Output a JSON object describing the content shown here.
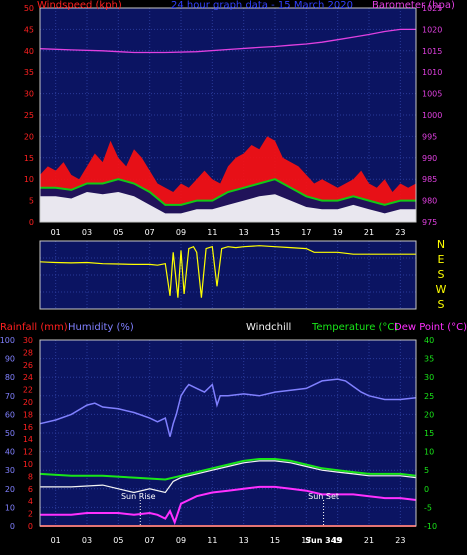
{
  "chart_data": [
    {
      "type": "line",
      "title": "24 hour graph data - 15 March 2020",
      "legend": {
        "left": "Windspeed (kph)",
        "right": "Barometer (hpa)"
      },
      "x_ticks": [
        "01",
        "03",
        "05",
        "07",
        "09",
        "11",
        "13",
        "15",
        "17",
        "19",
        "21",
        "23"
      ],
      "x_range_hours": [
        0,
        24
      ],
      "y_left": {
        "label": "Windspeed (kph)",
        "range": [
          0,
          50
        ],
        "ticks": [
          0,
          5,
          10,
          15,
          20,
          25,
          30,
          35,
          40,
          45,
          50
        ]
      },
      "y_right": {
        "label": "Barometer (hpa)",
        "range": [
          975,
          1025
        ],
        "ticks": [
          975,
          980,
          985,
          990,
          995,
          1000,
          1005,
          1010,
          1015,
          1020,
          1025
        ]
      },
      "grid": true,
      "colors": {
        "gust": "#ff1010",
        "average": "#14c814",
        "wind_fill": "#ffffff",
        "barometer": "#e040e0",
        "axis_left": "#ff2020",
        "axis_right": "#e040e0",
        "plot_bg": "#0b1462"
      },
      "series": [
        {
          "name": "Barometer (hpa)",
          "axis": "right",
          "x": [
            0,
            2,
            4,
            6,
            8,
            10,
            12,
            14,
            15,
            16,
            17,
            18,
            19,
            20,
            21,
            22,
            23,
            24
          ],
          "y": [
            1015.5,
            1015.2,
            1015.0,
            1014.6,
            1014.6,
            1014.8,
            1015.3,
            1015.8,
            1016.0,
            1016.3,
            1016.6,
            1017.0,
            1017.6,
            1018.2,
            1018.8,
            1019.5,
            1020.0,
            1020.0
          ]
        },
        {
          "role": "gust",
          "axis": "left",
          "x": [
            0,
            0.5,
            1,
            1.5,
            2,
            2.5,
            3,
            3.5,
            4,
            4.5,
            5,
            5.5,
            6,
            6.5,
            7,
            7.5,
            8,
            8.5,
            9,
            9.5,
            10,
            10.5,
            11,
            11.5,
            12,
            12.5,
            13,
            13.5,
            14,
            14.5,
            15,
            15.5,
            16,
            16.5,
            17,
            17.5,
            18,
            18.5,
            19,
            19.5,
            20,
            20.5,
            21,
            21.5,
            22,
            22.5,
            23,
            23.5,
            24
          ],
          "y": [
            11,
            13,
            12,
            14,
            11,
            10,
            13,
            16,
            14,
            19,
            15,
            13,
            17,
            15,
            12,
            9,
            8,
            7,
            9,
            8,
            10,
            12,
            10,
            9,
            13,
            15,
            16,
            18,
            17,
            20,
            19,
            15,
            14,
            13,
            11,
            9,
            10,
            9,
            8,
            9,
            10,
            12,
            9,
            8,
            10,
            7,
            9,
            8,
            9
          ]
        },
        {
          "role": "average",
          "axis": "left",
          "x": [
            0,
            1,
            2,
            3,
            4,
            5,
            6,
            7,
            8,
            9,
            10,
            11,
            12,
            13,
            14,
            15,
            16,
            17,
            18,
            19,
            20,
            21,
            22,
            23,
            24
          ],
          "y": [
            8,
            8,
            7.5,
            9,
            9,
            10,
            9,
            7,
            4,
            4,
            5,
            5,
            7,
            8,
            9,
            10,
            8,
            6,
            5,
            5,
            6,
            5,
            4,
            5,
            5
          ]
        },
        {
          "role": "average-fill",
          "axis": "left",
          "x": [
            0,
            1,
            2,
            3,
            4,
            5,
            6,
            7,
            8,
            9,
            10,
            11,
            12,
            13,
            14,
            15,
            16,
            17,
            18,
            19,
            20,
            21,
            22,
            23,
            24
          ],
          "y": [
            6,
            6,
            5.5,
            7,
            6.5,
            7,
            6,
            4,
            2,
            2,
            3,
            3,
            4,
            5,
            6,
            6.5,
            5,
            3.5,
            3,
            3,
            4,
            3,
            2,
            3,
            3
          ]
        }
      ]
    },
    {
      "type": "line",
      "y_labels": [
        "N",
        "E",
        "S",
        "W",
        "S"
      ],
      "y_range_degrees": [
        0,
        360
      ],
      "series": [
        {
          "role": "wind-direction",
          "color": "#ffff00",
          "x": [
            0,
            0.5,
            1,
            2,
            3,
            4,
            5,
            6,
            7,
            7.5,
            8,
            8.3,
            8.5,
            8.8,
            9,
            9.2,
            9.5,
            9.8,
            10,
            10.3,
            10.6,
            11,
            11.3,
            11.6,
            12,
            12.5,
            13,
            14,
            15,
            16,
            17,
            17.5,
            18,
            19,
            20,
            21,
            22,
            23,
            24
          ],
          "y": [
            250,
            248,
            246,
            244,
            246,
            240,
            238,
            236,
            236,
            232,
            240,
            70,
            300,
            60,
            310,
            80,
            320,
            330,
            300,
            60,
            320,
            330,
            120,
            320,
            330,
            325,
            330,
            335,
            330,
            325,
            320,
            300,
            300,
            300,
            290,
            290,
            290,
            290,
            290
          ]
        }
      ]
    },
    {
      "type": "line",
      "legend": {
        "rainfall": "Rainfall (mm)",
        "humidity": "Humidity (%)",
        "windchill": "Windchill",
        "temperature": "Temperature (°C)",
        "dewpoint": "Dew Point (°C)"
      },
      "annotations": {
        "sunrise": "Sun Rise",
        "sunset": "Sun Set",
        "sunset_time": "Sun 349"
      },
      "x_ticks": [
        "01",
        "03",
        "05",
        "07",
        "09",
        "11",
        "13",
        "15",
        "17",
        "19",
        "21",
        "23"
      ],
      "y_humidity": {
        "range": [
          0,
          100
        ],
        "ticks": [
          0,
          10,
          20,
          30,
          40,
          50,
          60,
          70,
          80,
          90,
          100
        ]
      },
      "y_rain": {
        "range": [
          0,
          30
        ],
        "ticks": [
          0,
          2,
          4,
          6,
          8,
          10,
          12,
          14,
          16,
          18,
          20,
          22,
          24,
          26,
          28,
          30
        ]
      },
      "y_temp": {
        "range": [
          -10,
          40
        ],
        "ticks": [
          -10,
          -5,
          0,
          5,
          10,
          15,
          20,
          25,
          30,
          35,
          40
        ]
      },
      "grid": true,
      "colors": {
        "humidity": "#8080ff",
        "temperature": "#19e619",
        "windchill": "#f5f5f5",
        "dewpoint": "#ff30ff",
        "rainfall": "#ff2020",
        "axis_temp": "#19e619"
      },
      "sunrise_hour": 6.4,
      "sunset_hour": 18.1,
      "series": [
        {
          "role": "humidity",
          "axis": "humidity",
          "x": [
            0,
            1,
            2,
            3,
            3.5,
            4,
            5,
            6,
            7,
            7.5,
            8,
            8.3,
            8.5,
            8.7,
            9,
            9.3,
            9.5,
            10,
            10.5,
            11,
            11.3,
            11.5,
            12,
            13,
            14,
            15,
            16,
            17,
            18,
            19,
            19.5,
            20,
            20.5,
            21,
            22,
            23,
            24
          ],
          "y": [
            55,
            57,
            60,
            65,
            66,
            64,
            63,
            61,
            58,
            56,
            58,
            48,
            55,
            60,
            70,
            74,
            76,
            74,
            72,
            76,
            65,
            70,
            70,
            71,
            70,
            72,
            73,
            74,
            78,
            79,
            78,
            75,
            72,
            70,
            68,
            68,
            69
          ]
        },
        {
          "role": "temperature",
          "axis": "temp",
          "x": [
            0,
            2,
            4,
            6,
            8,
            9,
            10,
            11,
            12,
            13,
            14,
            15,
            16,
            17,
            18,
            19,
            20,
            21,
            22,
            23,
            24
          ],
          "y": [
            4,
            3.5,
            3.5,
            3,
            2.5,
            3.5,
            4.5,
            5.5,
            6.5,
            7.5,
            8,
            8,
            7.5,
            6.5,
            5.5,
            5,
            4.5,
            4,
            4,
            4,
            3.5
          ]
        },
        {
          "role": "windchill",
          "axis": "temp",
          "x": [
            0,
            2,
            4,
            6,
            7,
            8,
            8.5,
            9,
            10,
            11,
            12,
            13,
            14,
            15,
            16,
            17,
            18,
            19,
            20,
            21,
            22,
            23,
            24
          ],
          "y": [
            0.5,
            0.5,
            1,
            -1,
            0,
            -1,
            2,
            3,
            4,
            5,
            6,
            7,
            7.5,
            7.5,
            7,
            6,
            5,
            4.5,
            4,
            3.5,
            3.5,
            3.5,
            3
          ]
        },
        {
          "role": "dewpoint",
          "axis": "temp",
          "x": [
            0,
            1,
            2,
            3,
            4,
            5,
            6,
            7,
            7.5,
            8,
            8.3,
            8.6,
            9,
            9.5,
            10,
            11,
            12,
            13,
            14,
            15,
            16,
            17,
            18,
            19,
            20,
            21,
            22,
            23,
            24
          ],
          "y": [
            -7,
            -7,
            -7,
            -6.5,
            -6.5,
            -6.5,
            -7,
            -6.5,
            -7,
            -8,
            -6,
            -9,
            -4,
            -3,
            -2,
            -1,
            -0.5,
            0,
            0.5,
            0.5,
            0,
            -0.5,
            -1.5,
            -1.5,
            -1.5,
            -2,
            -2.5,
            -2.5,
            -3
          ]
        },
        {
          "role": "rainfall",
          "axis": "rain",
          "x": [
            0,
            24
          ],
          "y": [
            0,
            0
          ]
        }
      ]
    }
  ]
}
